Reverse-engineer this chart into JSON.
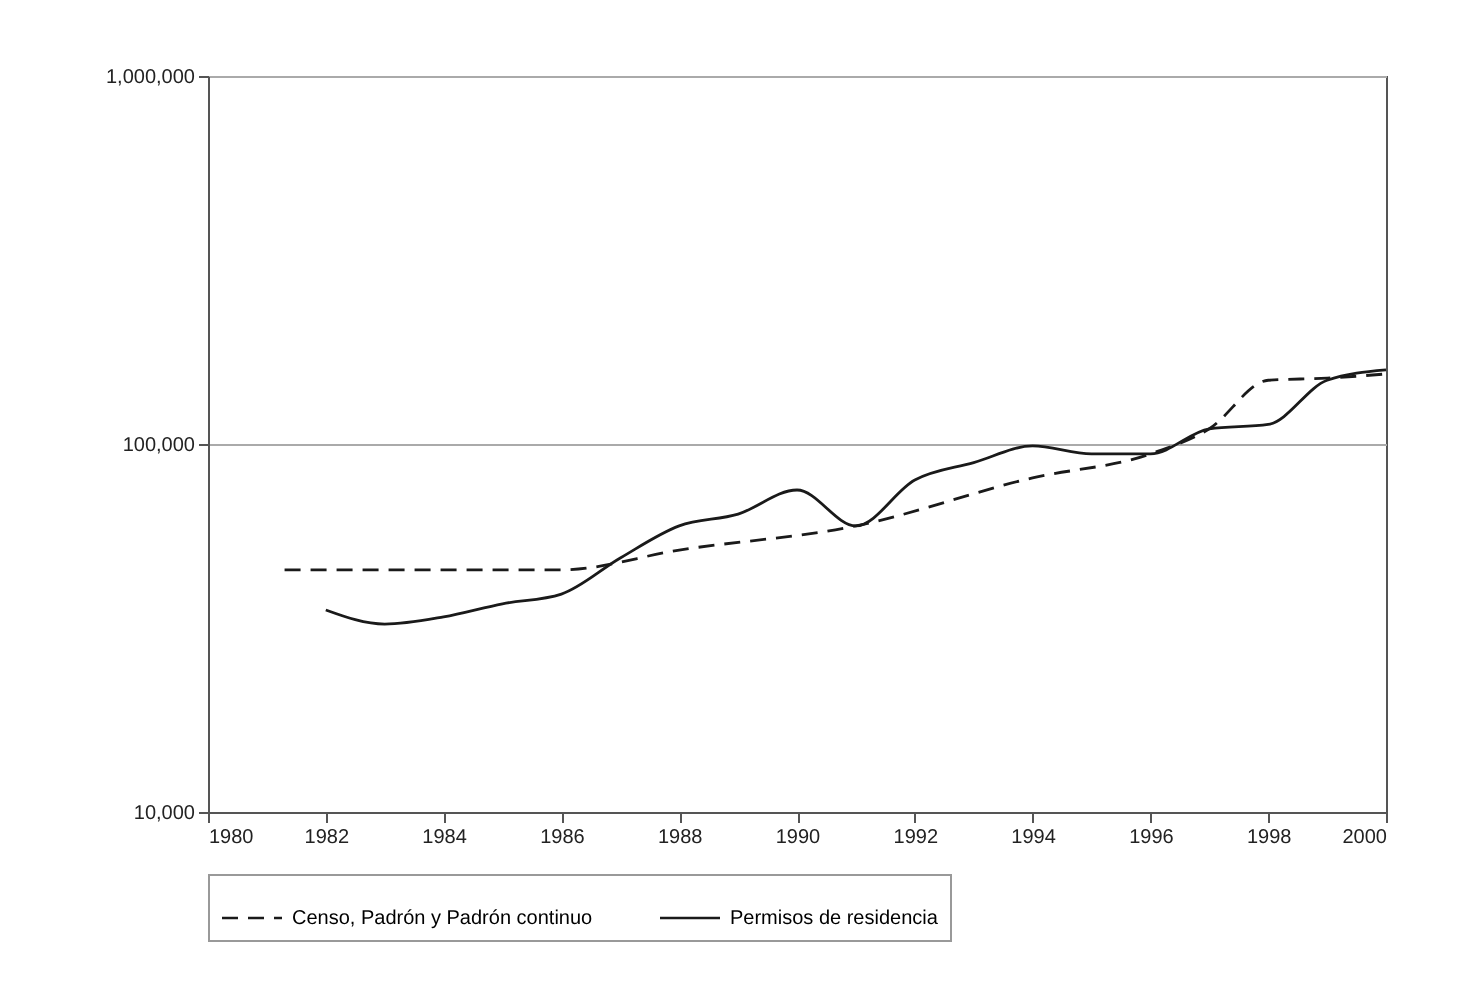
{
  "chart_data": {
    "type": "line",
    "log": "y",
    "xlim": [
      1980,
      2000
    ],
    "xticks": [
      1980,
      1982,
      1984,
      1986,
      1988,
      1990,
      1992,
      1994,
      1996,
      1998,
      2000
    ],
    "ylim": [
      10000,
      1000000
    ],
    "yticks": [
      {
        "value": 10000,
        "label": "10,000"
      },
      {
        "value": 100000,
        "label": "100,000"
      },
      {
        "value": 1000000,
        "label": "1,000,000"
      }
    ],
    "grid": "y",
    "legend": "bottom",
    "marker": "none",
    "series": [
      {
        "name": "Censo, Padrón y Padrón continuo",
        "color": "#1a1a1a",
        "line_style": "dashed",
        "x": [
          1981.3,
          1986,
          1988,
          1991,
          1994,
          1996,
          1997,
          1998,
          1999,
          2000
        ],
        "values": [
          45500,
          45500,
          51500,
          59900,
          80900,
          94000,
          110000,
          149000,
          151000,
          155000
        ]
      },
      {
        "name": "Permisos de residencia",
        "color": "#1a1a1a",
        "line_style": "solid",
        "x": [
          1982,
          1983,
          1984,
          1985,
          1986,
          1987,
          1988,
          1989,
          1990,
          1991,
          1992,
          1993,
          1994,
          1995,
          1996,
          1997,
          1998,
          1999,
          2000
        ],
        "values": [
          35400,
          32400,
          33900,
          36800,
          39100,
          49000,
          59900,
          64500,
          75000,
          59900,
          79800,
          89000,
          98800,
          94000,
          94000,
          110000,
          113000,
          149000,
          159000
        ]
      }
    ]
  }
}
